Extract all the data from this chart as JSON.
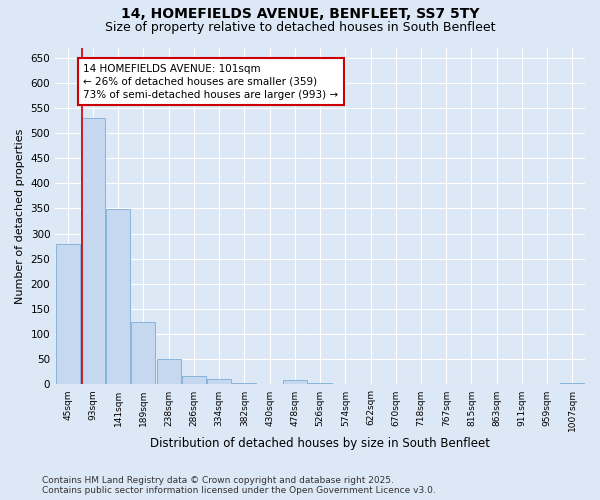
{
  "title_line1": "14, HOMEFIELDS AVENUE, BENFLEET, SS7 5TY",
  "title_line2": "Size of property relative to detached houses in South Benfleet",
  "xlabel": "Distribution of detached houses by size in South Benfleet",
  "ylabel": "Number of detached properties",
  "categories": [
    "45sqm",
    "93sqm",
    "141sqm",
    "189sqm",
    "238sqm",
    "286sqm",
    "334sqm",
    "382sqm",
    "430sqm",
    "478sqm",
    "526sqm",
    "574sqm",
    "622sqm",
    "670sqm",
    "718sqm",
    "767sqm",
    "815sqm",
    "863sqm",
    "911sqm",
    "959sqm",
    "1007sqm"
  ],
  "values": [
    280,
    530,
    348,
    125,
    50,
    17,
    11,
    2,
    0,
    8,
    3,
    0,
    0,
    0,
    0,
    0,
    0,
    0,
    0,
    0,
    2
  ],
  "bar_color": "#c5d8ef",
  "bar_edge_color": "#7aadd4",
  "vline_color": "#cc0000",
  "annotation_text": "14 HOMEFIELDS AVENUE: 101sqm\n← 26% of detached houses are smaller (359)\n73% of semi-detached houses are larger (993) →",
  "annotation_box_color": "#ffffff",
  "annotation_box_edge_color": "#cc0000",
  "ylim": [
    0,
    670
  ],
  "yticks": [
    0,
    50,
    100,
    150,
    200,
    250,
    300,
    350,
    400,
    450,
    500,
    550,
    600,
    650
  ],
  "background_color": "#dce8f5",
  "grid_color": "#ffffff",
  "footer_line1": "Contains HM Land Registry data © Crown copyright and database right 2025.",
  "footer_line2": "Contains public sector information licensed under the Open Government Licence v3.0.",
  "title_fontsize": 10,
  "subtitle_fontsize": 9,
  "annotation_fontsize": 7.5,
  "footer_fontsize": 6.5,
  "ylabel_fontsize": 8,
  "xlabel_fontsize": 8.5
}
